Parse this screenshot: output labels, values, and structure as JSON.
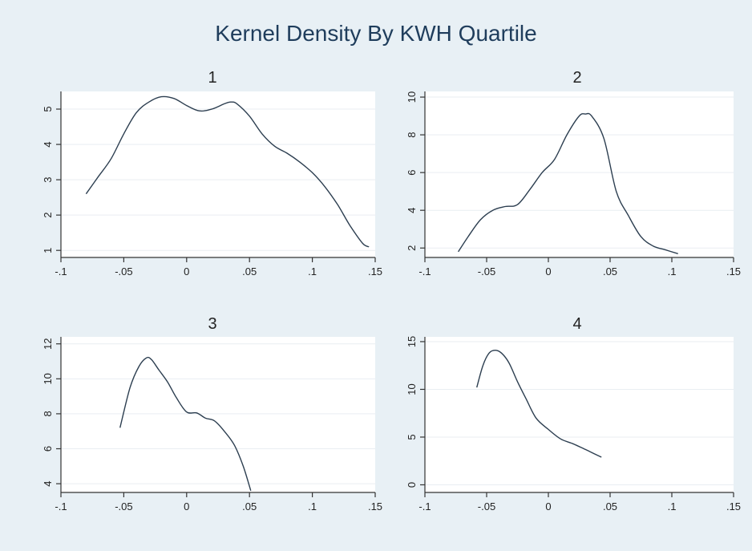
{
  "title": "Kernel Density By KWH Quartile",
  "colors": {
    "background": "#e8f0f5",
    "plot": "#ffffff",
    "line": "#2c3e50",
    "title": "#1f3d5c"
  },
  "chart_data": [
    {
      "type": "line",
      "title": "1",
      "xlim": [
        -0.1,
        0.15
      ],
      "ylim": [
        0.8,
        5.5
      ],
      "xticks": [
        -0.1,
        -0.05,
        0,
        0.05,
        0.1,
        0.15
      ],
      "xtick_labels": [
        "-.1",
        "-.05",
        "0",
        ".05",
        ".1",
        ".15"
      ],
      "yticks": [
        1,
        2,
        3,
        4,
        5
      ],
      "ytick_labels": [
        "1",
        "2",
        "3",
        "4",
        "5"
      ],
      "grid": true,
      "x": [
        -0.08,
        -0.07,
        -0.06,
        -0.05,
        -0.04,
        -0.03,
        -0.02,
        -0.01,
        0,
        0.01,
        0.02,
        0.03,
        0.035,
        0.04,
        0.05,
        0.06,
        0.07,
        0.08,
        0.09,
        0.1,
        0.11,
        0.12,
        0.13,
        0.14,
        0.145
      ],
      "y": [
        2.6,
        3.1,
        3.6,
        4.3,
        4.9,
        5.2,
        5.35,
        5.3,
        5.1,
        4.95,
        5.0,
        5.15,
        5.2,
        5.15,
        4.8,
        4.3,
        3.95,
        3.75,
        3.5,
        3.2,
        2.8,
        2.3,
        1.7,
        1.2,
        1.1
      ]
    },
    {
      "type": "line",
      "title": "2",
      "xlim": [
        -0.1,
        0.15
      ],
      "ylim": [
        1.5,
        10.3
      ],
      "xticks": [
        -0.1,
        -0.05,
        0,
        0.05,
        0.1,
        0.15
      ],
      "xtick_labels": [
        "-.1",
        "-.05",
        "0",
        ".05",
        ".1",
        ".15"
      ],
      "yticks": [
        2,
        4,
        6,
        8,
        10
      ],
      "ytick_labels": [
        "2",
        "4",
        "6",
        "8",
        "10"
      ],
      "grid": true,
      "x": [
        -0.073,
        -0.065,
        -0.055,
        -0.045,
        -0.035,
        -0.025,
        -0.015,
        -0.005,
        0.005,
        0.015,
        0.025,
        0.03,
        0.035,
        0.045,
        0.055,
        0.065,
        0.075,
        0.085,
        0.095,
        0.105
      ],
      "y": [
        1.8,
        2.6,
        3.5,
        4.0,
        4.2,
        4.3,
        5.1,
        6.0,
        6.7,
        8.0,
        9.0,
        9.1,
        9.0,
        7.8,
        5.0,
        3.7,
        2.6,
        2.1,
        1.9,
        1.7
      ]
    },
    {
      "type": "line",
      "title": "3",
      "xlim": [
        -0.1,
        0.15
      ],
      "ylim": [
        3.5,
        12.4
      ],
      "xticks": [
        -0.1,
        -0.05,
        0,
        0.05,
        0.1,
        0.15
      ],
      "xtick_labels": [
        "-.1",
        "-.05",
        "0",
        ".05",
        ".1",
        ".15"
      ],
      "yticks": [
        4,
        6,
        8,
        10,
        12
      ],
      "ytick_labels": [
        "4",
        "6",
        "8",
        "10",
        "12"
      ],
      "grid": true,
      "x": [
        -0.053,
        -0.045,
        -0.038,
        -0.032,
        -0.028,
        -0.022,
        -0.015,
        -0.008,
        0,
        0.008,
        0.015,
        0.022,
        0.03,
        0.038,
        0.045,
        0.051
      ],
      "y": [
        7.2,
        9.5,
        10.7,
        11.2,
        11.1,
        10.5,
        9.8,
        8.9,
        8.1,
        8.05,
        7.75,
        7.6,
        7.0,
        6.2,
        5.0,
        3.6
      ]
    },
    {
      "type": "line",
      "title": "4",
      "xlim": [
        -0.1,
        0.15
      ],
      "ylim": [
        -0.8,
        15.5
      ],
      "xticks": [
        -0.1,
        -0.05,
        0,
        0.05,
        0.1,
        0.15
      ],
      "xtick_labels": [
        "-.1",
        "-.05",
        "0",
        ".05",
        ".1",
        ".15"
      ],
      "yticks": [
        0,
        5,
        10,
        15
      ],
      "ytick_labels": [
        "0",
        "5",
        "10",
        "15"
      ],
      "grid": true,
      "x": [
        -0.058,
        -0.053,
        -0.048,
        -0.043,
        -0.038,
        -0.032,
        -0.025,
        -0.018,
        -0.01,
        0,
        0.01,
        0.02,
        0.03,
        0.038,
        0.043
      ],
      "y": [
        10.2,
        12.5,
        13.8,
        14.1,
        13.8,
        12.8,
        10.8,
        9.0,
        7.0,
        5.8,
        4.8,
        4.3,
        3.7,
        3.2,
        2.9
      ]
    }
  ]
}
